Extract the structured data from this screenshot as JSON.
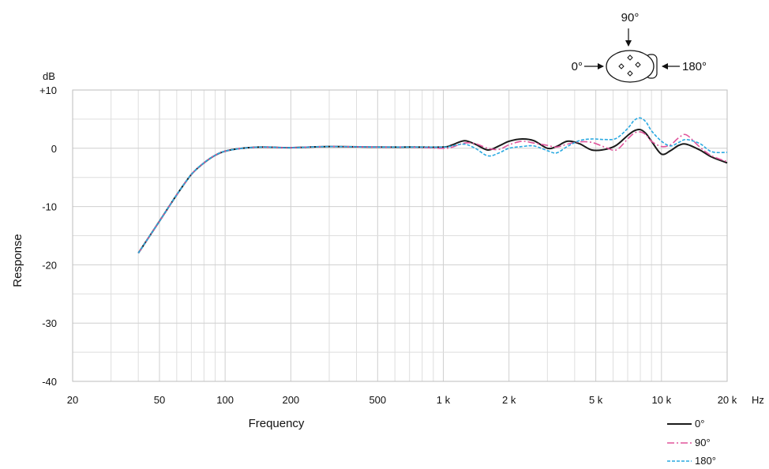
{
  "chart_data": {
    "type": "line",
    "xlabel": "Frequency",
    "ylabel": "Response",
    "x_unit": "Hz",
    "y_unit": "dB",
    "x_scale": "log",
    "xlim": [
      20,
      20000
    ],
    "ylim": [
      -40,
      10
    ],
    "x_ticks": [
      {
        "value": 20,
        "label": "20"
      },
      {
        "value": 50,
        "label": "50"
      },
      {
        "value": 100,
        "label": "100"
      },
      {
        "value": 200,
        "label": "200"
      },
      {
        "value": 500,
        "label": "500"
      },
      {
        "value": 1000,
        "label": "1 k"
      },
      {
        "value": 2000,
        "label": "2 k"
      },
      {
        "value": 5000,
        "label": "5 k"
      },
      {
        "value": 10000,
        "label": "10 k"
      },
      {
        "value": 20000,
        "label": "20 k"
      }
    ],
    "y_ticks": [
      {
        "value": 10,
        "label": "+10"
      },
      {
        "value": 0,
        "label": "0"
      },
      {
        "value": -10,
        "label": "-10"
      },
      {
        "value": -20,
        "label": "-20"
      },
      {
        "value": -30,
        "label": "-30"
      },
      {
        "value": -40,
        "label": "-40"
      }
    ],
    "grid": true,
    "legend_position": "bottom-right",
    "series": [
      {
        "name": "0°",
        "color": "#1a1a1a",
        "dash": "solid",
        "x": [
          40,
          50,
          60,
          70,
          80,
          90,
          100,
          120,
          150,
          200,
          300,
          500,
          700,
          1000,
          1100,
          1250,
          1400,
          1600,
          1800,
          2000,
          2300,
          2600,
          3000,
          3300,
          3700,
          4200,
          4800,
          5500,
          6200,
          7000,
          7500,
          8000,
          8500,
          9000,
          10000,
          11000,
          12000,
          13000,
          15000,
          17000,
          20000
        ],
        "y": [
          -18,
          -12.5,
          -8,
          -4.5,
          -2.5,
          -1.2,
          -0.5,
          0,
          0.2,
          0.1,
          0.3,
          0.2,
          0.2,
          0.2,
          0.6,
          1.3,
          0.7,
          -0.3,
          0.4,
          1.2,
          1.6,
          1.3,
          0,
          0.3,
          1.2,
          0.8,
          -0.3,
          -0.2,
          0.5,
          2.2,
          3,
          3.2,
          2.5,
          1.2,
          -1,
          -0.4,
          0.5,
          0.7,
          -0.3,
          -1.5,
          -2.5
        ]
      },
      {
        "name": "90°",
        "color": "#e0559c",
        "dash": "long-dash",
        "x": [
          40,
          50,
          60,
          70,
          80,
          90,
          100,
          120,
          150,
          200,
          300,
          500,
          700,
          1000,
          1100,
          1250,
          1400,
          1600,
          1800,
          2000,
          2300,
          2600,
          3000,
          3300,
          3700,
          4200,
          4800,
          5500,
          6200,
          7000,
          7500,
          8000,
          8500,
          9000,
          10000,
          11000,
          12000,
          13000,
          15000,
          17000,
          20000
        ],
        "y": [
          -18,
          -12.5,
          -8,
          -4.5,
          -2.5,
          -1.2,
          -0.5,
          0,
          0.2,
          0.1,
          0.3,
          0.2,
          0.2,
          0,
          0.2,
          0.9,
          0.8,
          0,
          -0.2,
          0.6,
          1.2,
          0.9,
          0.5,
          0.2,
          0.7,
          1.1,
          1,
          0.2,
          -0.3,
          1.6,
          2.6,
          2.8,
          2.3,
          1.2,
          0.3,
          0.6,
          1.8,
          2.3,
          0.2,
          -1.3,
          -2.3
        ]
      },
      {
        "name": "180°",
        "color": "#29a9e1",
        "dash": "short-dash",
        "x": [
          40,
          50,
          60,
          70,
          80,
          90,
          100,
          120,
          150,
          200,
          300,
          500,
          700,
          1000,
          1100,
          1250,
          1400,
          1600,
          1800,
          2000,
          2300,
          2600,
          3000,
          3300,
          3700,
          4200,
          4800,
          5500,
          6200,
          7000,
          7500,
          8000,
          8500,
          9000,
          10000,
          11000,
          12000,
          13000,
          15000,
          17000,
          20000
        ],
        "y": [
          -18,
          -12.5,
          -8,
          -4.5,
          -2.5,
          -1.2,
          -0.5,
          0,
          0.2,
          0.1,
          0.3,
          0.2,
          0.2,
          0.2,
          0.4,
          0.7,
          0,
          -1.3,
          -0.8,
          0,
          0.3,
          0.4,
          -0.4,
          -0.8,
          0.3,
          1.3,
          1.6,
          1.5,
          1.7,
          3.4,
          4.8,
          5.2,
          4.5,
          3,
          1.2,
          0.4,
          1,
          1.5,
          0.8,
          -0.6,
          -0.7
        ]
      }
    ]
  },
  "diagram": {
    "label_0": "0°",
    "label_90": "90°",
    "label_180": "180°"
  },
  "legend": {
    "title": ""
  }
}
